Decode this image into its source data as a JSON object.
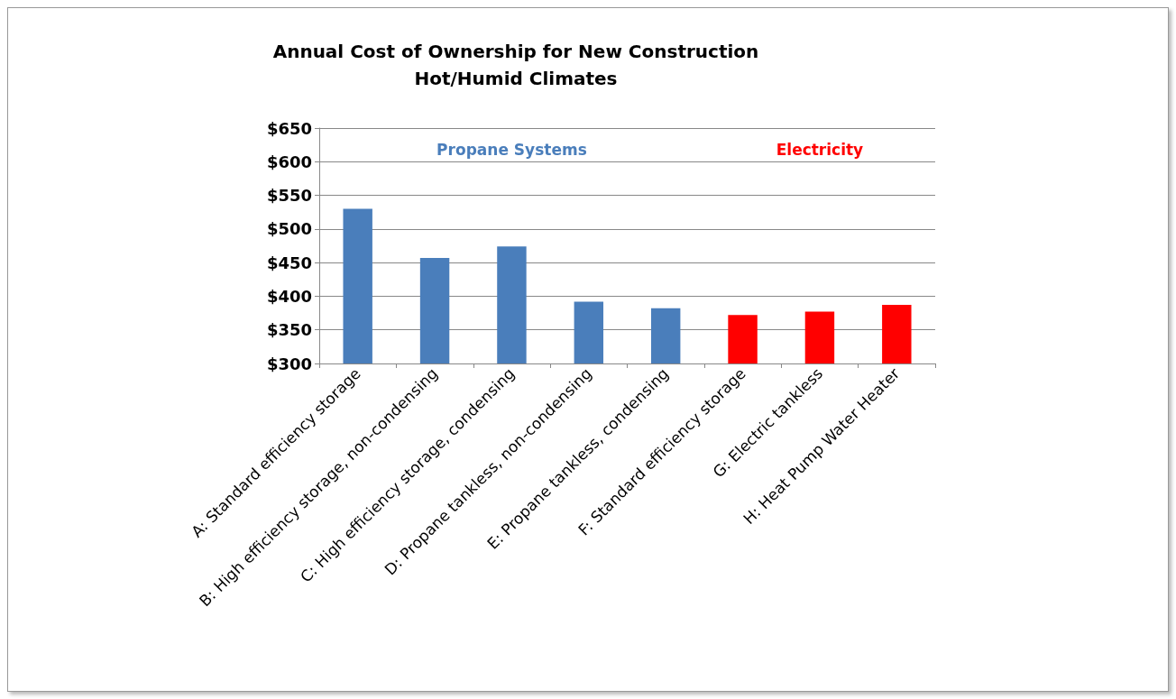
{
  "chart_data": {
    "type": "bar",
    "title": "Annual Cost of Ownership for New Construction\nHot/Humid Climates",
    "categories": [
      "A: Standard efficiency storage",
      "B: High efficiency storage, non-condensing",
      "C: High efficiency storage, condensing",
      "D: Propane tankless, non-condensing",
      "E: Propane tankless, condensing",
      "F: Standard efficiency storage",
      "G: Electric tankless",
      "H: Heat Pump Water Heater"
    ],
    "values": [
      530,
      457,
      474,
      392,
      382,
      372,
      377,
      387
    ],
    "colors": [
      "#4a7ebb",
      "#4a7ebb",
      "#4a7ebb",
      "#4a7ebb",
      "#4a7ebb",
      "#ff0000",
      "#ff0000",
      "#ff0000"
    ],
    "ylim": [
      300,
      650
    ],
    "yticks": [
      {
        "value": 300,
        "label": "$300"
      },
      {
        "value": 350,
        "label": "$350"
      },
      {
        "value": 400,
        "label": "$400"
      },
      {
        "value": 450,
        "label": "$450"
      },
      {
        "value": 500,
        "label": "$500"
      },
      {
        "value": 550,
        "label": "$550"
      },
      {
        "value": 600,
        "label": "$600"
      },
      {
        "value": 650,
        "label": "$650"
      }
    ],
    "grid": "y",
    "annotations": [
      "Propane Systems",
      "Electricity"
    ]
  }
}
